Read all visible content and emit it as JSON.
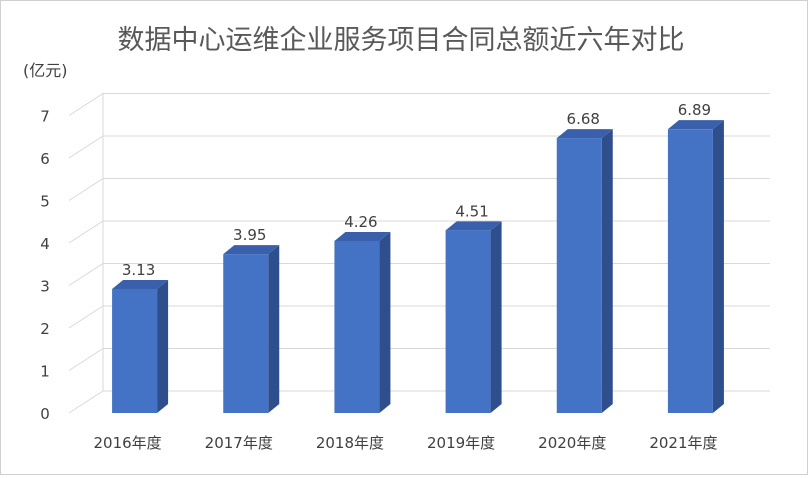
{
  "chart_data": {
    "type": "bar",
    "title": "数据中心运维企业服务项目合同总额近六年对比",
    "unit_label": "(亿元)",
    "xlabel": "",
    "ylabel": "",
    "categories": [
      "2016年度",
      "2017年度",
      "2018年度",
      "2019年度",
      "2020年度",
      "2021年度"
    ],
    "values": [
      3.13,
      3.95,
      4.26,
      4.51,
      6.68,
      6.89
    ],
    "value_labels": [
      "3.13",
      "3.95",
      "4.26",
      "4.51",
      "6.68",
      "6.89"
    ],
    "ylim": [
      0,
      7
    ],
    "yticks": [
      "0",
      "1",
      "2",
      "3",
      "4",
      "5",
      "6",
      "7"
    ],
    "grid": true,
    "style": "3d-column",
    "colors": {
      "bar_front": "#4472c4",
      "bar_side": "#2e4e8c",
      "bar_top": "#3a60ab",
      "grid": "#d9d9d9",
      "text": "#404040"
    }
  }
}
